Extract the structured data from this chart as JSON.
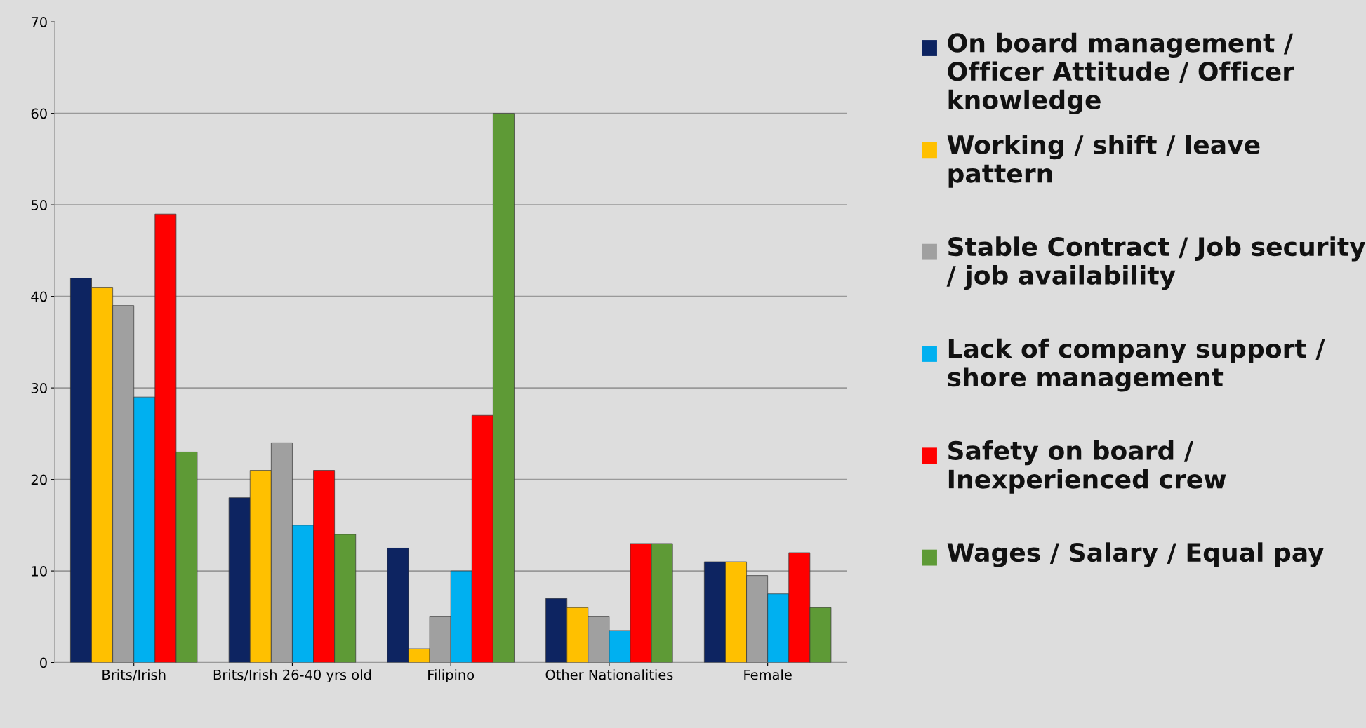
{
  "chart_data": {
    "type": "bar",
    "categories": [
      "Brits/Irish",
      "Brits/Irish 26-40 yrs old",
      "Filipino",
      "Other Nationalities",
      "Female"
    ],
    "series": [
      {
        "name": "On board management / Officer Attitude / Officer knowledge",
        "color": "#0d2461",
        "values": [
          42,
          18,
          12.5,
          7,
          11
        ]
      },
      {
        "name": "Working / shift / leave pattern",
        "color": "#ffc000",
        "values": [
          41,
          21,
          1.5,
          6,
          11
        ]
      },
      {
        "name": "Stable Contract / Job security / job availability",
        "color": "#a0a0a0",
        "values": [
          39,
          24,
          5,
          5,
          9.5
        ]
      },
      {
        "name": "Lack of company support / shore management",
        "color": "#00b0f0",
        "values": [
          29,
          15,
          10,
          3.5,
          7.5
        ]
      },
      {
        "name": "Safety on board / Inexperienced crew",
        "color": "#ff0000",
        "values": [
          49,
          21,
          27,
          13,
          12
        ]
      },
      {
        "name": "Wages / Salary / Equal pay",
        "color": "#5e9a36",
        "values": [
          23,
          14,
          60,
          13,
          6
        ]
      }
    ],
    "ylim": [
      0,
      70
    ],
    "yticks": [
      0,
      10,
      20,
      30,
      40,
      50,
      60,
      70
    ],
    "grid": "y",
    "legend": "right"
  }
}
